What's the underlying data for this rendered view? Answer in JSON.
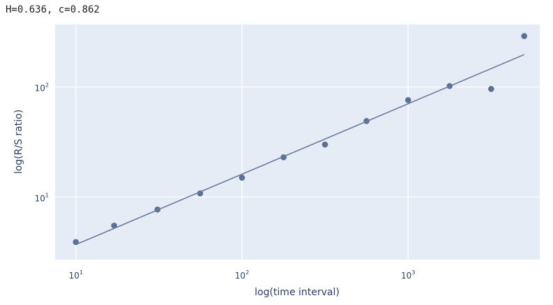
{
  "title": "H=0.636, c=0.862",
  "chart_data": {
    "type": "scatter",
    "title": "H=0.636, c=0.862",
    "xlabel": "log(time interval)",
    "ylabel": "log(R/S ratio)",
    "x_scale": "log",
    "y_scale": "log",
    "xlim": [
      7.5,
      6200
    ],
    "ylim": [
      2.7,
      370
    ],
    "x_ticks": [
      {
        "base": "10",
        "exp": "1",
        "value": 10
      },
      {
        "base": "10",
        "exp": "2",
        "value": 100
      },
      {
        "base": "10",
        "exp": "3",
        "value": 1000
      }
    ],
    "y_ticks": [
      {
        "base": "10",
        "exp": "1",
        "value": 10
      },
      {
        "base": "10",
        "exp": "2",
        "value": 100
      }
    ],
    "grid": true,
    "series": [
      {
        "mode": "markers",
        "color": "#5e6f94",
        "x": [
          10,
          17,
          31,
          56,
          100,
          178,
          316,
          562,
          1000,
          1778,
          3162,
          5000
        ],
        "y": [
          3.9,
          5.5,
          7.7,
          10.8,
          15.0,
          23.0,
          30.0,
          49.0,
          76.0,
          102.0,
          96.0,
          290.0
        ]
      },
      {
        "mode": "line",
        "color": "#6b7ba0",
        "x": [
          10,
          5000
        ],
        "y": [
          3.7,
          197
        ]
      }
    ]
  }
}
